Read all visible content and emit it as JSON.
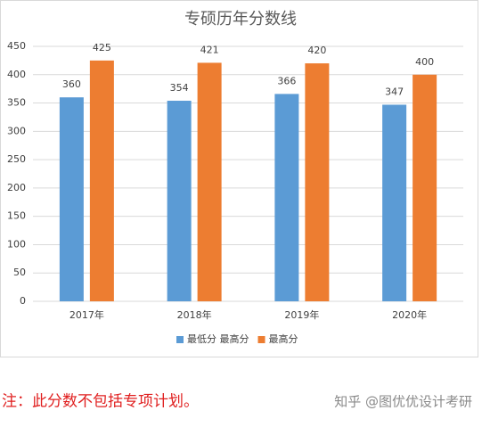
{
  "chart_data": {
    "type": "bar",
    "title": "专硕历年分数线",
    "categories": [
      "2017年",
      "2018年",
      "2019年",
      "2020年"
    ],
    "series": [
      {
        "name": "最低分 最高分",
        "color": "#5b9bd5",
        "values": [
          360,
          354,
          366,
          347
        ]
      },
      {
        "name": "最高分",
        "color": "#ed7d31",
        "values": [
          425,
          421,
          420,
          400
        ]
      }
    ],
    "ylim": [
      0,
      450
    ],
    "yticks": [
      0,
      50,
      100,
      150,
      200,
      250,
      300,
      350,
      400,
      450
    ],
    "grid": true,
    "legend": "bottom"
  },
  "note": "注：此分数不包括专项计划。",
  "watermark": "知乎 @图优优设计考研"
}
